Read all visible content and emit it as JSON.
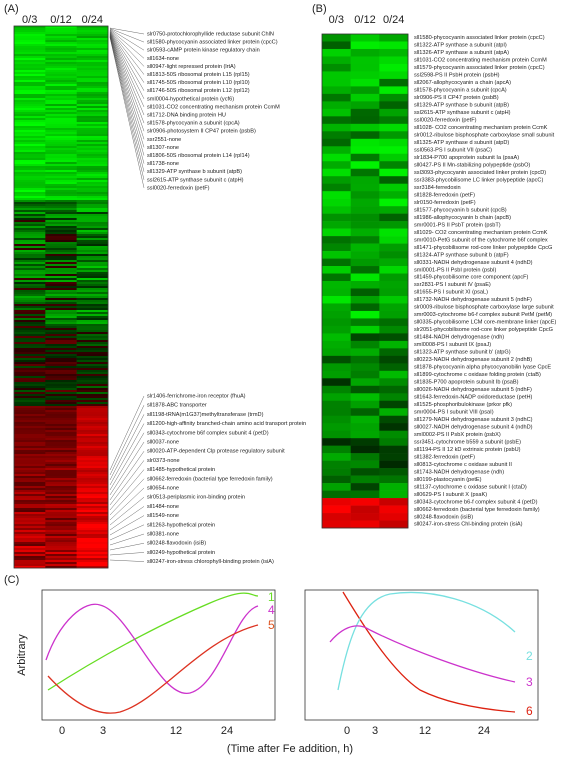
{
  "panel_a": {
    "label": "(A)",
    "columns": [
      "0/3",
      "0/12",
      "0/24"
    ],
    "top_genes": [
      "slr0750-protochlorophyllide reductase subunit ChlN",
      "sll1580-phycocyanin associated linker protein (cpcC)",
      "slr0593-cAMP protein kinase regulatory chain",
      "sll1634-none",
      "sll0947-light repressed protein (lrtA)",
      "sll1813-50S ribosomal protein L15 (rpl15)",
      "sll1745-50S ribosomal protein L10 (rpl10)",
      "sll1746-50S ribosomal protein L12 (rpl12)",
      "sml0004-hypothetical protein (ycf6)",
      "sll1031-CO2 concentrating mechanism protein CcmM",
      "sll1712-DNA binding protein HU",
      "sll1578-phycocyanin a subunit (cpcA)",
      "slr0906-photosystem II CP47 protein (psbB)",
      "ssr2551-none",
      "sll1307-none",
      "sll1806-50S ribosomal protein L14 (rpl14)",
      "sll1738-none",
      "sll1329-ATP synthase b subunit (atpB)",
      "ssl2615-ATP synthase subunit c (atpH)",
      "ssl0020-ferredoxin (petF)"
    ],
    "bottom_genes": [
      "slr1406-ferrichrome-iron receptor (fhuA)",
      "sll1878-ABC transporter",
      "sll1198-tRNA(m1G37)methyltransferase (trmD)",
      "sll1200-high-affinity branched-chain amino acid transport protein",
      "sll0343-cytochrome b6f complex subunit 4 (petD)",
      "sll0037-none",
      "sll0020-ATP-dependent Clp protease regulatory subunit",
      "slr0373-none",
      "sll1485-hypothetical protein",
      "sll0662-ferredoxin (bacterial type ferredoxin family)",
      "sll0654-none",
      "slr0513-periplasmic iron-binding protein",
      "sll1484-none",
      "sll1549-none",
      "sll1263-hypothetical protein",
      "sll0381-none",
      "sll0248-flavodoxin (isiB)",
      "sll0249-hypothetical protein",
      "sll0247-iron-stress chlorophyll-binding protein (isiA)"
    ]
  },
  "panel_b": {
    "label": "(B)",
    "columns": [
      "0/3",
      "0/12",
      "0/24"
    ],
    "genes": [
      "sll1580-phycocyanin associated linker protein (cpcC)",
      "sll1322-ATP synthase a subunit (atpI)",
      "sll1326-ATP synthase a subunit (atpA)",
      "sll1031-CO2 concentrating mechanism protein CcmM",
      "sll1579-phycocyanin associated linker protein (cpcC)",
      "ssl2598-PS II PsbH protein (psbH)",
      "sll2067-allophycocyanin a chain (apcA)",
      "sll1578-phycocyanin a subunit (cpcA)",
      "slr0906-PS II CP47 protein (psbB)",
      "sll1329-ATP synthase b subunit (atpB)",
      "ssl2615-ATP synthase subunit c (atpH)",
      "ssl0020-ferredoxin (petF)",
      "sll1028- CO2 concentrating mechanism protein CcmK",
      "slr0012-ribulose bisphosphate carboxylase small subunit",
      "sll1325-ATP synthase d subunit (atpD)",
      "ssl0563-PS I subunit VII (psaC)",
      "slr1834-P700 apoprotein subunit Ia (psaA)",
      "sll0427-PS II Mn-stabilizing polypeptide (psbO)",
      "ssl3093-phycocyanin associated linker protein (cpcD)",
      "ssr3383-phycobilisome LC linker polypeptide (apcC)",
      "ssr3184-ferredoxin",
      "sll1828-ferredoxin (petF)",
      "slr0150-ferredoxin (petF)",
      "sll1577-phycocyanin b subunit (cpcB)",
      "sll1986-allophycocyanin b chain (apcB)",
      "smr0001-PS II PsbT protein (psbT)",
      "sll1029- CO2 concentrating mechanism protein CcmK",
      "smr0010-PetG subunit of the cytochrome b6f complex",
      "sll1471-phycobilisome rod-core linker polypeptide CpcG",
      "sll1324-ATP synthase subunit b (atpF)",
      "sll0331-NADH dehydrogenase subunit 4 (ndhD)",
      "sml0001-PS II PsbI protein (psbI)",
      "sll1459-phycobilisome core component (apcF)",
      "ssr2831-PS I subunit IV (psaE)",
      "sll1655-PS I subunit XI (psaL)",
      "sll1732-NADH dehydrogenase subunit 5 (ndhF)",
      "slr0009-ribulose bisphosphate carboxylase large subunit",
      "smr0003-cytochrome b6-f complex subunit PetM (petM)",
      "sll0335-phycobilisome LCM core-membrane linker (apcE)",
      "slr2051-phycobilisome rod-core linker polypeptide CpcG",
      "sll1484-NADH dehydrogenase (ndh)",
      "sml0008-PS I subunit IX (psaJ)",
      "sll1323-ATP synthase subunit b' (atpG)",
      "sll0223-NADH dehydrogenase subunit 2 (ndhB)",
      "sll1878-phycocyanin alpha phycocyanobilin lyase CpcE",
      "sll1899-cytochrome c oxidase folding protein (ctaB)",
      "sll1835-P700 apoprotein subunit Ib (psaB)",
      "sll0026-NADH dehydrogenase subunit 5 (ndhF)",
      "sll1643-ferredoxin-NADP oxidoreductase (petH)",
      "sll1525-phosphoribulokinase (prkor pfk)",
      "smr0004-PS I subunit VIII (psaI)",
      "sll1279-NADH dehydrogenase subunit 3 (ndhC)",
      "sll0027-NADH dehydrogenase subunit 4 (ndhD)",
      "sml0002-PS II PsbX protein (psbX)",
      "ssr3451-cytochrome b559 a subunit (psbE)",
      "sll1194-PS II 12 kD extrinsic protein (psbU)",
      "sll1382-ferredoxin (petF)",
      "sll0813-cytochrome c oxidase subunit II",
      "sll1743-NADH dehydrogenase (ndh)",
      "sll0199-plastocyanin (petE)",
      "sll1137-cytochrome c oxidase subunit I (ctaD)",
      "sll0629-PS I subunit X (psaK)",
      "sll0343-cytochrome b6-f complex subunit 4 (petD)",
      "sll0662-ferredoxin (bacterial type ferredoxin family)",
      "sll0248-flavodoxin (isiB)",
      "sll0247-iron-stress Chl-binding protein (isiA)"
    ]
  },
  "panel_c": {
    "label": "(C)",
    "y_axis_label": "Arbitrary",
    "x_axis_label": "(Time after Fe addition, h)",
    "left": {
      "x_ticks": [
        "0",
        "3",
        "12",
        "24"
      ],
      "curve_labels": [
        "1",
        "4",
        "5"
      ]
    },
    "right": {
      "x_ticks": [
        "0",
        "3",
        "12",
        "24"
      ],
      "curve_labels": [
        "2",
        "3",
        "6"
      ]
    }
  }
}
